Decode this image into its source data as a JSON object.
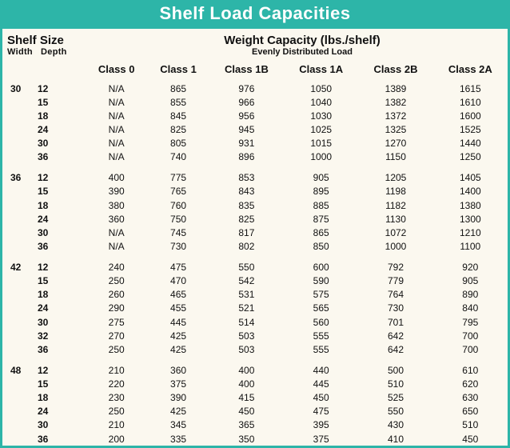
{
  "title": "Shelf Load Capacities",
  "shelf_size_header": {
    "main": "Shelf Size",
    "sub_left": "Width",
    "sub_right": "Depth"
  },
  "weight_header": {
    "main": "Weight Capacity (lbs./shelf)",
    "sub": "Evenly Distributed Load"
  },
  "class_headers": [
    "Class 0",
    "Class 1",
    "Class 1B",
    "Class 1A",
    "Class 2B",
    "Class 2A"
  ],
  "colors": {
    "accent": "#2db5a8",
    "background": "#fbf8ef",
    "text": "#111111",
    "title_text": "#ffffff"
  },
  "fonts": {
    "title_size_pt": 22,
    "header_main_pt": 15,
    "header_sub_pt": 11,
    "class_header_pt": 13,
    "body_pt": 12
  },
  "groups": [
    {
      "width": "30",
      "rows": [
        {
          "depth": "12",
          "values": [
            "N/A",
            "865",
            "976",
            "1050",
            "1389",
            "1615"
          ]
        },
        {
          "depth": "15",
          "values": [
            "N/A",
            "855",
            "966",
            "1040",
            "1382",
            "1610"
          ]
        },
        {
          "depth": "18",
          "values": [
            "N/A",
            "845",
            "956",
            "1030",
            "1372",
            "1600"
          ]
        },
        {
          "depth": "24",
          "values": [
            "N/A",
            "825",
            "945",
            "1025",
            "1325",
            "1525"
          ]
        },
        {
          "depth": "30",
          "values": [
            "N/A",
            "805",
            "931",
            "1015",
            "1270",
            "1440"
          ]
        },
        {
          "depth": "36",
          "values": [
            "N/A",
            "740",
            "896",
            "1000",
            "1150",
            "1250"
          ]
        }
      ]
    },
    {
      "width": "36",
      "rows": [
        {
          "depth": "12",
          "values": [
            "400",
            "775",
            "853",
            "905",
            "1205",
            "1405"
          ]
        },
        {
          "depth": "15",
          "values": [
            "390",
            "765",
            "843",
            "895",
            "1198",
            "1400"
          ]
        },
        {
          "depth": "18",
          "values": [
            "380",
            "760",
            "835",
            "885",
            "1182",
            "1380"
          ]
        },
        {
          "depth": "24",
          "values": [
            "360",
            "750",
            "825",
            "875",
            "1130",
            "1300"
          ]
        },
        {
          "depth": "30",
          "values": [
            "N/A",
            "745",
            "817",
            "865",
            "1072",
            "1210"
          ]
        },
        {
          "depth": "36",
          "values": [
            "N/A",
            "730",
            "802",
            "850",
            "1000",
            "1100"
          ]
        }
      ]
    },
    {
      "width": "42",
      "rows": [
        {
          "depth": "12",
          "values": [
            "240",
            "475",
            "550",
            "600",
            "792",
            "920"
          ]
        },
        {
          "depth": "15",
          "values": [
            "250",
            "470",
            "542",
            "590",
            "779",
            "905"
          ]
        },
        {
          "depth": "18",
          "values": [
            "260",
            "465",
            "531",
            "575",
            "764",
            "890"
          ]
        },
        {
          "depth": "24",
          "values": [
            "290",
            "455",
            "521",
            "565",
            "730",
            "840"
          ]
        },
        {
          "depth": "30",
          "values": [
            "275",
            "445",
            "514",
            "560",
            "701",
            "795"
          ]
        },
        {
          "depth": "32",
          "values": [
            "270",
            "425",
            "503",
            "555",
            "642",
            "700"
          ]
        },
        {
          "depth": "36",
          "values": [
            "250",
            "425",
            "503",
            "555",
            "642",
            "700"
          ]
        }
      ]
    },
    {
      "width": "48",
      "rows": [
        {
          "depth": "12",
          "values": [
            "210",
            "360",
            "400",
            "440",
            "500",
            "610"
          ]
        },
        {
          "depth": "15",
          "values": [
            "220",
            "375",
            "400",
            "445",
            "510",
            "620"
          ]
        },
        {
          "depth": "18",
          "values": [
            "230",
            "390",
            "415",
            "450",
            "525",
            "630"
          ]
        },
        {
          "depth": "24",
          "values": [
            "250",
            "425",
            "450",
            "475",
            "550",
            "650"
          ]
        },
        {
          "depth": "30",
          "values": [
            "210",
            "345",
            "365",
            "395",
            "430",
            "510"
          ]
        },
        {
          "depth": "36",
          "values": [
            "200",
            "335",
            "350",
            "375",
            "410",
            "450"
          ]
        }
      ]
    }
  ]
}
